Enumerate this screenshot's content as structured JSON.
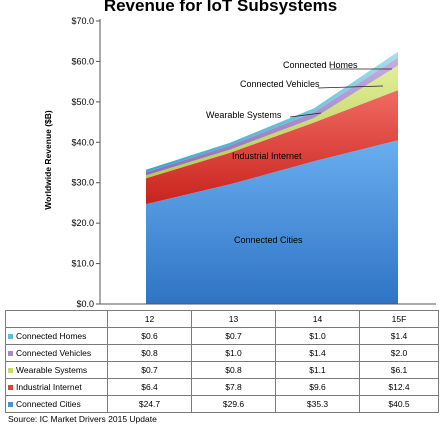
{
  "chart_data": {
    "type": "area",
    "stacked": true,
    "title": "Revenue for IoT Subsystems",
    "ylabel": "Worldwide Revenue ($B)",
    "xlabel": "",
    "categories": [
      "12",
      "13",
      "14",
      "15F"
    ],
    "ylim": [
      0,
      70
    ],
    "yticks": [
      "$0.0",
      "$10.0",
      "$20.0",
      "$30.0",
      "$40.0",
      "$50.0",
      "$60.0",
      "$70.0"
    ],
    "grid": false,
    "series": [
      {
        "name": "Connected Cities",
        "values": [
          24.7,
          29.6,
          35.3,
          40.5
        ],
        "labels": [
          "$24.7",
          "$29.6",
          "$35.3",
          "$40.5"
        ],
        "color": "#4a90d9"
      },
      {
        "name": "Industrial Internet",
        "values": [
          6.4,
          7.8,
          9.6,
          12.4
        ],
        "labels": [
          "$6.4",
          "$7.8",
          "$9.6",
          "$12.4"
        ],
        "color": "#e0413a"
      },
      {
        "name": "Wearable Systems",
        "values": [
          0.7,
          0.8,
          1.1,
          6.1
        ],
        "labels": [
          "$0.7",
          "$0.8",
          "$1.1",
          "$6.1"
        ],
        "color": "#c8da6a"
      },
      {
        "name": "Connected Vehicles",
        "values": [
          0.8,
          1.0,
          1.4,
          2.0
        ],
        "labels": [
          "$0.8",
          "$1.0",
          "$1.4",
          "$2.0"
        ],
        "color": "#a78bc7"
      },
      {
        "name": "Connected Homes",
        "values": [
          0.6,
          0.7,
          1.0,
          1.4
        ],
        "labels": [
          "$0.6",
          "$0.7",
          "$1.0",
          "$1.4"
        ],
        "color": "#5bc0de"
      }
    ],
    "table_row_order": [
      "Connected Homes",
      "Connected Vehicles",
      "Wearable Systems",
      "Industrial Internet",
      "Connected Cities"
    ],
    "annotations": [
      "Connected Homes",
      "Connected Vehicles",
      "Wearable Systems",
      "Industrial Internet",
      "Connected Cities"
    ]
  },
  "source": "Source:  IC Market Drivers 2015 Update"
}
